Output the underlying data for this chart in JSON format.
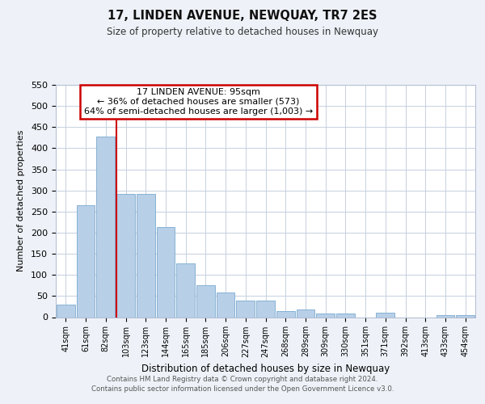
{
  "title": "17, LINDEN AVENUE, NEWQUAY, TR7 2ES",
  "subtitle": "Size of property relative to detached houses in Newquay",
  "xlabel": "Distribution of detached houses by size in Newquay",
  "ylabel": "Number of detached properties",
  "bar_labels": [
    "41sqm",
    "61sqm",
    "82sqm",
    "103sqm",
    "123sqm",
    "144sqm",
    "165sqm",
    "185sqm",
    "206sqm",
    "227sqm",
    "247sqm",
    "268sqm",
    "289sqm",
    "309sqm",
    "330sqm",
    "351sqm",
    "371sqm",
    "392sqm",
    "413sqm",
    "433sqm",
    "454sqm"
  ],
  "bar_values": [
    30,
    265,
    428,
    291,
    291,
    214,
    128,
    76,
    59,
    40,
    40,
    15,
    18,
    8,
    8,
    0,
    10,
    0,
    0,
    5,
    5
  ],
  "bar_color": "#b8cfe8",
  "bar_edge_color": "#7aaace",
  "highlight_line_color": "#cc0000",
  "ylim": [
    0,
    550
  ],
  "yticks": [
    0,
    50,
    100,
    150,
    200,
    250,
    300,
    350,
    400,
    450,
    500,
    550
  ],
  "annotation_title": "17 LINDEN AVENUE: 95sqm",
  "annotation_line1": "← 36% of detached houses are smaller (573)",
  "annotation_line2": "64% of semi-detached houses are larger (1,003) →",
  "annotation_box_color": "#ffffff",
  "annotation_box_edge": "#cc0000",
  "footer_line1": "Contains HM Land Registry data © Crown copyright and database right 2024.",
  "footer_line2": "Contains public sector information licensed under the Open Government Licence v3.0.",
  "bg_color": "#eef2f8",
  "plot_bg_color": "#ffffff",
  "grid_color": "#c5d0e0"
}
